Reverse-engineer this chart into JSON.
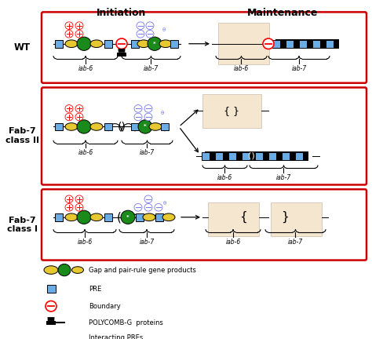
{
  "col_headers": [
    "Initiation",
    "Maintenance"
  ],
  "row_labels": [
    "WT",
    "Fab-7\nclass II",
    "Fab-7\nclass I"
  ],
  "bg": "#ffffff",
  "peach": "#f5e6d0",
  "red": "#cc0000",
  "blue_pre": "#6aade4",
  "yellow": "#e8c830",
  "green": "#1a8a1a",
  "legend_items": [
    "Gap and pair-rule gene products",
    "PRE",
    "Boundary",
    "POLYCOMB-G  proteins",
    "Interacting PREs"
  ]
}
